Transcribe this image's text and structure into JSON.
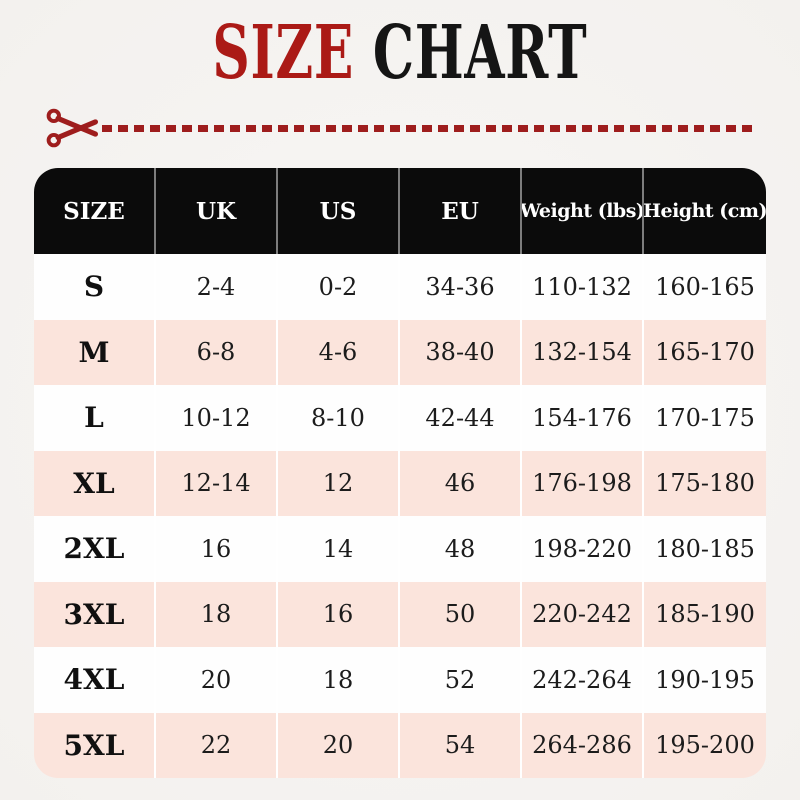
{
  "title": {
    "word1": "SIZE",
    "word2": " CHART"
  },
  "cut_line": {
    "scissors_icon": "✂"
  },
  "colors": {
    "title_red": "#ab1a16",
    "title_black": "#151515",
    "cut_line_red": "#9e1d1d",
    "header_bg": "#0b0b0b",
    "header_text": "#ffffff",
    "row_pink": "#fbe4dc",
    "row_white": "#fefefe",
    "page_bg": "#f6f4f2",
    "cell_text": "#1c1c1c"
  },
  "chart_data": {
    "type": "table",
    "title": "SIZE CHART",
    "columns": [
      "SIZE",
      "UK",
      "US",
      "EU",
      "Weight (lbs)",
      "Height (cm)"
    ],
    "rows": [
      [
        "S",
        "2-4",
        "0-2",
        "34-36",
        "110-132",
        "160-165"
      ],
      [
        "M",
        "6-8",
        "4-6",
        "38-40",
        "132-154",
        "165-170"
      ],
      [
        "L",
        "10-12",
        "8-10",
        "42-44",
        "154-176",
        "170-175"
      ],
      [
        "XL",
        "12-14",
        "12",
        "46",
        "176-198",
        "175-180"
      ],
      [
        "2XL",
        "16",
        "14",
        "48",
        "198-220",
        "180-185"
      ],
      [
        "3XL",
        "18",
        "16",
        "50",
        "220-242",
        "185-190"
      ],
      [
        "4XL",
        "20",
        "18",
        "52",
        "242-264",
        "190-195"
      ],
      [
        "5XL",
        "22",
        "20",
        "54",
        "264-286",
        "195-200"
      ]
    ],
    "layout": {
      "header_style": "black band, rounded top corners",
      "row_striping": "white / light pink alternating, rounded bottom corners",
      "column_separators": "thin light vertical lines"
    }
  }
}
